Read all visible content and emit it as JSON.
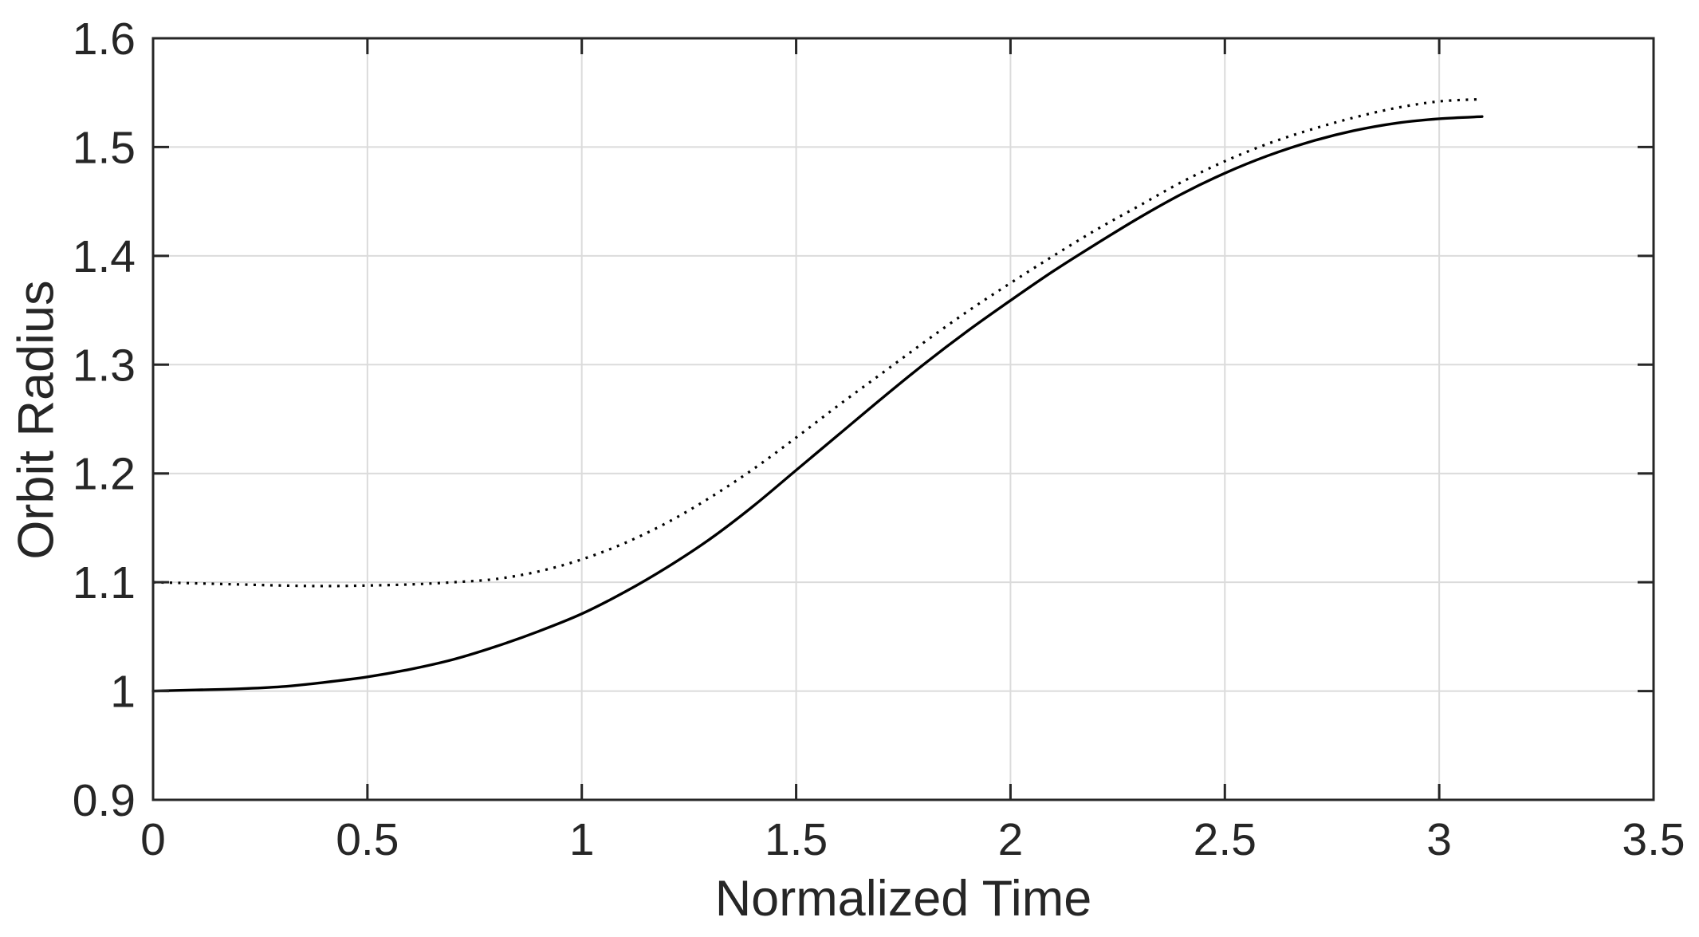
{
  "figure": {
    "background_color": "#ffffff",
    "axes_color": "#262626",
    "grid_color": "#dbdbdb",
    "tick_label_color": "#262626"
  },
  "chart_data": {
    "type": "line",
    "title": "",
    "xlabel": "Normalized Time",
    "ylabel": "Orbit Radius",
    "xlim": [
      0,
      3.5
    ],
    "ylim": [
      0.9,
      1.6
    ],
    "x_ticks": [
      0,
      0.5,
      1,
      1.5,
      2,
      2.5,
      3,
      3.5
    ],
    "x_tick_labels": [
      "0",
      "0.5",
      "1",
      "1.5",
      "2",
      "2.5",
      "3",
      "3.5"
    ],
    "y_ticks": [
      0.9,
      1.0,
      1.1,
      1.2,
      1.3,
      1.4,
      1.5,
      1.6
    ],
    "y_tick_labels": [
      "0.9",
      "1",
      "1.1",
      "1.2",
      "1.3",
      "1.4",
      "1.5",
      "1.6"
    ],
    "grid": true,
    "legend": "none",
    "box": true,
    "x": [
      0,
      0.1,
      0.2,
      0.3,
      0.4,
      0.5,
      0.6,
      0.7,
      0.8,
      0.9,
      1.0,
      1.1,
      1.2,
      1.3,
      1.4,
      1.5,
      1.6,
      1.7,
      1.8,
      1.9,
      2.0,
      2.1,
      2.2,
      2.3,
      2.4,
      2.5,
      2.6,
      2.7,
      2.8,
      2.9,
      3.0,
      3.1
    ],
    "series": [
      {
        "name": "solid-curve",
        "style": "solid",
        "color": "#000000",
        "line_width": 3.4,
        "values": [
          1.0,
          1.001,
          1.002,
          1.004,
          1.008,
          1.013,
          1.02,
          1.029,
          1.041,
          1.055,
          1.071,
          1.091,
          1.114,
          1.14,
          1.17,
          1.203,
          1.236,
          1.269,
          1.301,
          1.331,
          1.359,
          1.386,
          1.411,
          1.435,
          1.457,
          1.476,
          1.492,
          1.505,
          1.515,
          1.522,
          1.526,
          1.528
        ]
      },
      {
        "name": "dotted-curve",
        "style": "dotted",
        "color": "#000000",
        "line_width": 3.2,
        "values": [
          1.1,
          1.099,
          1.098,
          1.097,
          1.0965,
          1.097,
          1.098,
          1.1,
          1.103,
          1.11,
          1.121,
          1.136,
          1.155,
          1.178,
          1.204,
          1.233,
          1.263,
          1.292,
          1.321,
          1.349,
          1.375,
          1.4,
          1.424,
          1.446,
          1.468,
          1.487,
          1.503,
          1.516,
          1.527,
          1.536,
          1.542,
          1.544
        ]
      }
    ]
  }
}
